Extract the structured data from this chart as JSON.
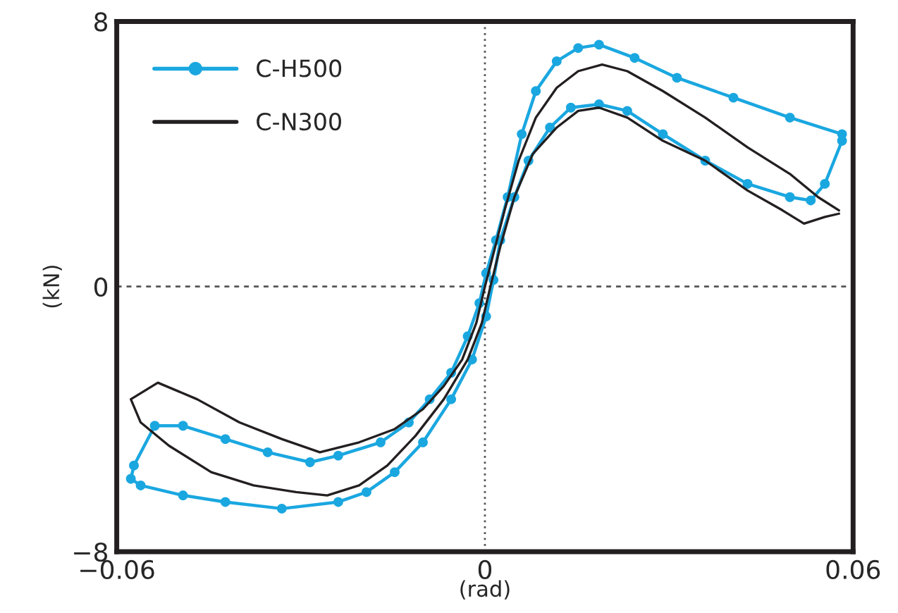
{
  "chart_data": {
    "type": "line",
    "xlabel": "(rad)",
    "ylabel": "(kN)",
    "xlim": [
      -0.06,
      0.06
    ],
    "ylim": [
      -8,
      8
    ],
    "xticks": [
      {
        "value": -0.06,
        "label": "−0.06"
      },
      0,
      {
        "value": 0.06,
        "label": "0.06"
      }
    ],
    "yticks": [
      {
        "value": -8,
        "label": "−8"
      },
      0,
      8
    ],
    "grid": false,
    "legend": "top left",
    "ref_lines": [
      {
        "axis": "x",
        "value": 0,
        "color": "#555555",
        "line_style": "dotted"
      },
      {
        "axis": "y",
        "value": 0,
        "color": "#555555",
        "line_style": "dashed"
      }
    ],
    "series": [
      {
        "name": "C-H500",
        "color": "#1aa7e0",
        "marker": "circle",
        "line_style": "solid",
        "x": [
          0.0582,
          0.0497,
          0.0405,
          0.0313,
          0.0244,
          0.0186,
          0.0152,
          0.0117,
          0.0083,
          0.006,
          0.0037,
          0.0018,
          0.0002,
          -0.0009,
          -0.0028,
          -0.0055,
          -0.009,
          -0.0124,
          -0.017,
          -0.0239,
          -0.0285,
          -0.0354,
          -0.0423,
          -0.0492,
          -0.0538,
          -0.0572,
          -0.0577,
          -0.0561,
          -0.0492,
          -0.0423,
          -0.0331,
          -0.0239,
          -0.0193,
          -0.0147,
          -0.0101,
          -0.0055,
          -0.0021,
          0.0002,
          0.0014,
          0.0025,
          0.0048,
          0.0071,
          0.0106,
          0.014,
          0.0186,
          0.0232,
          0.029,
          0.0359,
          0.0428,
          0.0497,
          0.0531,
          0.0554,
          0.0582
        ],
        "values": [
          4.6,
          5.1,
          5.7,
          6.3,
          6.9,
          7.3,
          7.2,
          6.8,
          5.9,
          4.6,
          2.7,
          1.4,
          0.4,
          -0.5,
          -1.5,
          -2.6,
          -3.4,
          -4.1,
          -4.7,
          -5.1,
          -5.3,
          -5.0,
          -4.6,
          -4.2,
          -4.2,
          -5.4,
          -5.8,
          -6.0,
          -6.3,
          -6.5,
          -6.7,
          -6.5,
          -6.2,
          -5.6,
          -4.7,
          -3.4,
          -2.2,
          -0.9,
          0.2,
          1.4,
          2.7,
          3.8,
          4.8,
          5.4,
          5.5,
          5.3,
          4.6,
          3.8,
          3.1,
          2.7,
          2.6,
          3.1,
          4.4
        ]
      },
      {
        "name": "C-N300",
        "color": "#231f20",
        "marker": "none",
        "line_style": "solid",
        "x": [
          0.0577,
          0.0543,
          0.0497,
          0.0428,
          0.0359,
          0.029,
          0.0232,
          0.0191,
          0.0152,
          0.0117,
          0.0083,
          0.0055,
          0.0032,
          0.0014,
          0.0,
          -0.0014,
          -0.0037,
          -0.0067,
          -0.0101,
          -0.0147,
          -0.0205,
          -0.0269,
          -0.0331,
          -0.04,
          -0.0469,
          -0.0533,
          -0.0577,
          -0.0561,
          -0.0515,
          -0.0446,
          -0.0377,
          -0.0308,
          -0.0257,
          -0.0205,
          -0.0159,
          -0.0113,
          -0.0067,
          -0.0028,
          -0.0005,
          0.0009,
          0.0025,
          0.0048,
          0.0078,
          0.0117,
          0.0152,
          0.0186,
          0.0232,
          0.029,
          0.0359,
          0.0428,
          0.0485,
          0.052,
          0.0554,
          0.0577
        ],
        "values": [
          2.3,
          2.7,
          3.4,
          4.2,
          5.1,
          5.9,
          6.5,
          6.7,
          6.5,
          6.0,
          5.1,
          3.8,
          2.3,
          1.0,
          0.0,
          -1.1,
          -2.2,
          -3.0,
          -3.7,
          -4.3,
          -4.7,
          -5.0,
          -4.6,
          -4.1,
          -3.4,
          -2.9,
          -3.4,
          -4.1,
          -4.8,
          -5.6,
          -6.0,
          -6.2,
          -6.3,
          -6.0,
          -5.4,
          -4.5,
          -3.4,
          -2.2,
          -1.1,
          0.0,
          1.2,
          2.7,
          4.0,
          4.8,
          5.3,
          5.4,
          5.1,
          4.4,
          3.8,
          2.9,
          2.3,
          1.9,
          2.1,
          2.2
        ]
      }
    ]
  }
}
